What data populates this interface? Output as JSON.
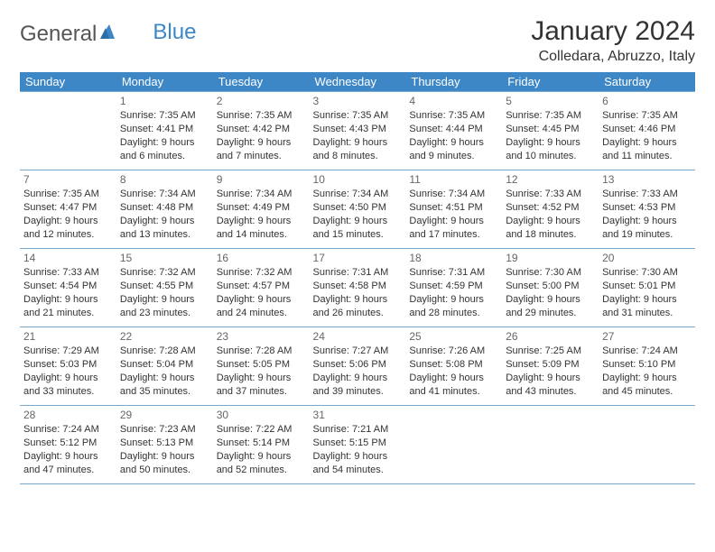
{
  "logo": {
    "text1": "General",
    "text2": "Blue"
  },
  "title": "January 2024",
  "location": "Colledara, Abruzzo, Italy",
  "colors": {
    "header_bg": "#3d87c7",
    "header_fg": "#ffffff",
    "border": "#7aa8cc",
    "text": "#333333",
    "daynum": "#666666"
  },
  "weekdays": [
    "Sunday",
    "Monday",
    "Tuesday",
    "Wednesday",
    "Thursday",
    "Friday",
    "Saturday"
  ],
  "weeks": [
    [
      {
        "num": "",
        "sunrise": "",
        "sunset": "",
        "day1": "",
        "day2": ""
      },
      {
        "num": "1",
        "sunrise": "Sunrise: 7:35 AM",
        "sunset": "Sunset: 4:41 PM",
        "day1": "Daylight: 9 hours",
        "day2": "and 6 minutes."
      },
      {
        "num": "2",
        "sunrise": "Sunrise: 7:35 AM",
        "sunset": "Sunset: 4:42 PM",
        "day1": "Daylight: 9 hours",
        "day2": "and 7 minutes."
      },
      {
        "num": "3",
        "sunrise": "Sunrise: 7:35 AM",
        "sunset": "Sunset: 4:43 PM",
        "day1": "Daylight: 9 hours",
        "day2": "and 8 minutes."
      },
      {
        "num": "4",
        "sunrise": "Sunrise: 7:35 AM",
        "sunset": "Sunset: 4:44 PM",
        "day1": "Daylight: 9 hours",
        "day2": "and 9 minutes."
      },
      {
        "num": "5",
        "sunrise": "Sunrise: 7:35 AM",
        "sunset": "Sunset: 4:45 PM",
        "day1": "Daylight: 9 hours",
        "day2": "and 10 minutes."
      },
      {
        "num": "6",
        "sunrise": "Sunrise: 7:35 AM",
        "sunset": "Sunset: 4:46 PM",
        "day1": "Daylight: 9 hours",
        "day2": "and 11 minutes."
      }
    ],
    [
      {
        "num": "7",
        "sunrise": "Sunrise: 7:35 AM",
        "sunset": "Sunset: 4:47 PM",
        "day1": "Daylight: 9 hours",
        "day2": "and 12 minutes."
      },
      {
        "num": "8",
        "sunrise": "Sunrise: 7:34 AM",
        "sunset": "Sunset: 4:48 PM",
        "day1": "Daylight: 9 hours",
        "day2": "and 13 minutes."
      },
      {
        "num": "9",
        "sunrise": "Sunrise: 7:34 AM",
        "sunset": "Sunset: 4:49 PM",
        "day1": "Daylight: 9 hours",
        "day2": "and 14 minutes."
      },
      {
        "num": "10",
        "sunrise": "Sunrise: 7:34 AM",
        "sunset": "Sunset: 4:50 PM",
        "day1": "Daylight: 9 hours",
        "day2": "and 15 minutes."
      },
      {
        "num": "11",
        "sunrise": "Sunrise: 7:34 AM",
        "sunset": "Sunset: 4:51 PM",
        "day1": "Daylight: 9 hours",
        "day2": "and 17 minutes."
      },
      {
        "num": "12",
        "sunrise": "Sunrise: 7:33 AM",
        "sunset": "Sunset: 4:52 PM",
        "day1": "Daylight: 9 hours",
        "day2": "and 18 minutes."
      },
      {
        "num": "13",
        "sunrise": "Sunrise: 7:33 AM",
        "sunset": "Sunset: 4:53 PM",
        "day1": "Daylight: 9 hours",
        "day2": "and 19 minutes."
      }
    ],
    [
      {
        "num": "14",
        "sunrise": "Sunrise: 7:33 AM",
        "sunset": "Sunset: 4:54 PM",
        "day1": "Daylight: 9 hours",
        "day2": "and 21 minutes."
      },
      {
        "num": "15",
        "sunrise": "Sunrise: 7:32 AM",
        "sunset": "Sunset: 4:55 PM",
        "day1": "Daylight: 9 hours",
        "day2": "and 23 minutes."
      },
      {
        "num": "16",
        "sunrise": "Sunrise: 7:32 AM",
        "sunset": "Sunset: 4:57 PM",
        "day1": "Daylight: 9 hours",
        "day2": "and 24 minutes."
      },
      {
        "num": "17",
        "sunrise": "Sunrise: 7:31 AM",
        "sunset": "Sunset: 4:58 PM",
        "day1": "Daylight: 9 hours",
        "day2": "and 26 minutes."
      },
      {
        "num": "18",
        "sunrise": "Sunrise: 7:31 AM",
        "sunset": "Sunset: 4:59 PM",
        "day1": "Daylight: 9 hours",
        "day2": "and 28 minutes."
      },
      {
        "num": "19",
        "sunrise": "Sunrise: 7:30 AM",
        "sunset": "Sunset: 5:00 PM",
        "day1": "Daylight: 9 hours",
        "day2": "and 29 minutes."
      },
      {
        "num": "20",
        "sunrise": "Sunrise: 7:30 AM",
        "sunset": "Sunset: 5:01 PM",
        "day1": "Daylight: 9 hours",
        "day2": "and 31 minutes."
      }
    ],
    [
      {
        "num": "21",
        "sunrise": "Sunrise: 7:29 AM",
        "sunset": "Sunset: 5:03 PM",
        "day1": "Daylight: 9 hours",
        "day2": "and 33 minutes."
      },
      {
        "num": "22",
        "sunrise": "Sunrise: 7:28 AM",
        "sunset": "Sunset: 5:04 PM",
        "day1": "Daylight: 9 hours",
        "day2": "and 35 minutes."
      },
      {
        "num": "23",
        "sunrise": "Sunrise: 7:28 AM",
        "sunset": "Sunset: 5:05 PM",
        "day1": "Daylight: 9 hours",
        "day2": "and 37 minutes."
      },
      {
        "num": "24",
        "sunrise": "Sunrise: 7:27 AM",
        "sunset": "Sunset: 5:06 PM",
        "day1": "Daylight: 9 hours",
        "day2": "and 39 minutes."
      },
      {
        "num": "25",
        "sunrise": "Sunrise: 7:26 AM",
        "sunset": "Sunset: 5:08 PM",
        "day1": "Daylight: 9 hours",
        "day2": "and 41 minutes."
      },
      {
        "num": "26",
        "sunrise": "Sunrise: 7:25 AM",
        "sunset": "Sunset: 5:09 PM",
        "day1": "Daylight: 9 hours",
        "day2": "and 43 minutes."
      },
      {
        "num": "27",
        "sunrise": "Sunrise: 7:24 AM",
        "sunset": "Sunset: 5:10 PM",
        "day1": "Daylight: 9 hours",
        "day2": "and 45 minutes."
      }
    ],
    [
      {
        "num": "28",
        "sunrise": "Sunrise: 7:24 AM",
        "sunset": "Sunset: 5:12 PM",
        "day1": "Daylight: 9 hours",
        "day2": "and 47 minutes."
      },
      {
        "num": "29",
        "sunrise": "Sunrise: 7:23 AM",
        "sunset": "Sunset: 5:13 PM",
        "day1": "Daylight: 9 hours",
        "day2": "and 50 minutes."
      },
      {
        "num": "30",
        "sunrise": "Sunrise: 7:22 AM",
        "sunset": "Sunset: 5:14 PM",
        "day1": "Daylight: 9 hours",
        "day2": "and 52 minutes."
      },
      {
        "num": "31",
        "sunrise": "Sunrise: 7:21 AM",
        "sunset": "Sunset: 5:15 PM",
        "day1": "Daylight: 9 hours",
        "day2": "and 54 minutes."
      },
      {
        "num": "",
        "sunrise": "",
        "sunset": "",
        "day1": "",
        "day2": ""
      },
      {
        "num": "",
        "sunrise": "",
        "sunset": "",
        "day1": "",
        "day2": ""
      },
      {
        "num": "",
        "sunrise": "",
        "sunset": "",
        "day1": "",
        "day2": ""
      }
    ]
  ]
}
